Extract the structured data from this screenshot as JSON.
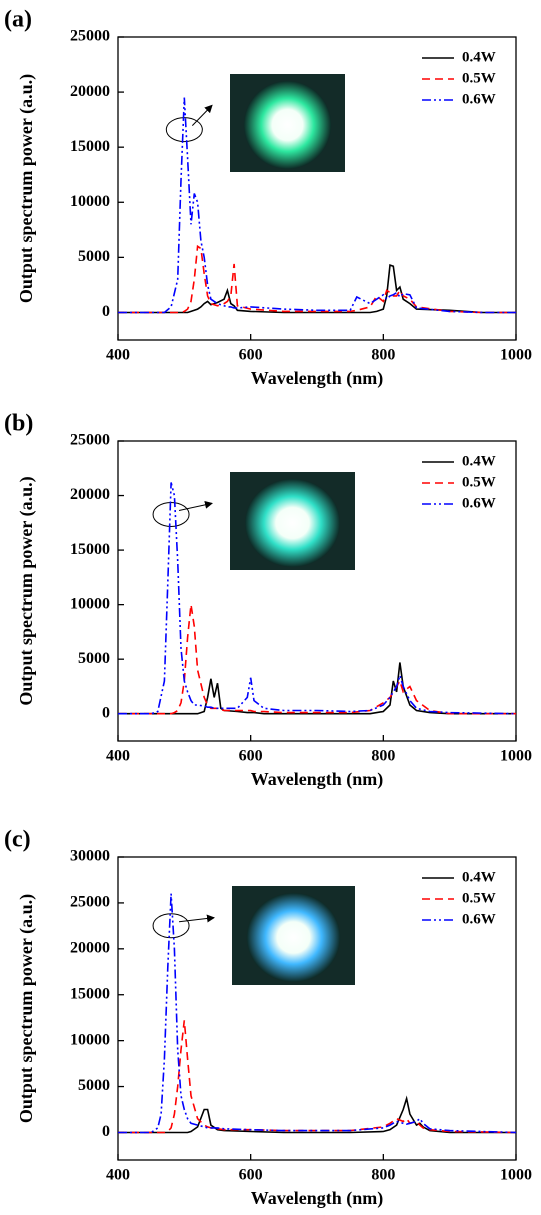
{
  "chart_data": [
    {
      "type": "line",
      "panel_label": "(a)",
      "x_label": "Wavelength (nm)",
      "y_label": "Output spectrum power (a.u.)",
      "xlim": [
        400,
        1000
      ],
      "xticks": [
        400,
        600,
        800,
        1000
      ],
      "ylim": [
        -2500,
        25000
      ],
      "yticks": [
        0,
        5000,
        10000,
        15000,
        20000,
        25000
      ],
      "legend": "upper right",
      "inset_color": "#2ee8a0",
      "x": [
        400,
        450,
        470,
        480,
        490,
        495,
        500,
        505,
        510,
        515,
        520,
        525,
        530,
        535,
        540,
        550,
        560,
        565,
        570,
        575,
        580,
        600,
        650,
        700,
        750,
        760,
        780,
        790,
        800,
        805,
        810,
        815,
        820,
        825,
        830,
        840,
        850,
        900,
        950,
        1000
      ],
      "series": [
        {
          "name": "0.4W",
          "color": "#000000",
          "linestyle": "solid",
          "values": [
            0,
            0,
            0,
            0,
            0,
            0,
            0,
            0,
            100,
            200,
            300,
            500,
            800,
            1000,
            700,
            900,
            1200,
            2000,
            800,
            600,
            200,
            100,
            0,
            0,
            0,
            0,
            0,
            100,
            300,
            1500,
            4300,
            4200,
            2000,
            2300,
            1200,
            800,
            300,
            200,
            0,
            0
          ]
        },
        {
          "name": "0.5W",
          "color": "#ff0000",
          "linestyle": "dashed",
          "values": [
            0,
            0,
            0,
            0,
            0,
            0,
            100,
            300,
            1000,
            3000,
            6000,
            5800,
            3500,
            1500,
            800,
            600,
            800,
            1000,
            1500,
            4400,
            600,
            300,
            100,
            100,
            100,
            200,
            500,
            1500,
            1000,
            2000,
            1800,
            1500,
            1500,
            2000,
            1500,
            1200,
            500,
            100,
            0,
            0
          ]
        },
        {
          "name": "0.6W",
          "color": "#0000ff",
          "linestyle": "dashdotdot",
          "values": [
            0,
            0,
            0,
            500,
            3000,
            12000,
            19500,
            14000,
            8000,
            10800,
            10000,
            6500,
            5000,
            2500,
            1200,
            800,
            600,
            500,
            500,
            400,
            400,
            500,
            300,
            200,
            200,
            1400,
            800,
            1200,
            1600,
            1200,
            1500,
            1600,
            1800,
            1400,
            1700,
            1600,
            400,
            100,
            0,
            0
          ]
        }
      ]
    },
    {
      "type": "line",
      "panel_label": "(b)",
      "x_label": "Wavelength (nm)",
      "y_label": "Output spectrum power (a.u.)",
      "xlim": [
        400,
        1000
      ],
      "xticks": [
        400,
        600,
        800,
        1000
      ],
      "ylim": [
        -2500,
        25000
      ],
      "yticks": [
        0,
        5000,
        10000,
        15000,
        20000,
        25000
      ],
      "legend": "upper right",
      "inset_color": "#30e0c8",
      "x": [
        400,
        450,
        460,
        470,
        475,
        480,
        485,
        490,
        495,
        500,
        505,
        510,
        515,
        520,
        530,
        535,
        540,
        545,
        550,
        555,
        560,
        580,
        595,
        600,
        605,
        620,
        650,
        700,
        750,
        780,
        800,
        810,
        815,
        820,
        825,
        830,
        840,
        850,
        870,
        900,
        1000
      ],
      "series": [
        {
          "name": "0.4W",
          "color": "#000000",
          "linestyle": "solid",
          "values": [
            0,
            0,
            0,
            0,
            0,
            0,
            0,
            0,
            0,
            0,
            0,
            0,
            0,
            0,
            200,
            1500,
            3200,
            1500,
            2800,
            500,
            300,
            200,
            100,
            100,
            100,
            0,
            0,
            0,
            0,
            0,
            200,
            800,
            3000,
            2000,
            4700,
            2500,
            800,
            300,
            100,
            0,
            0
          ]
        },
        {
          "name": "0.5W",
          "color": "#ff0000",
          "linestyle": "dashed",
          "values": [
            0,
            0,
            0,
            0,
            0,
            0,
            100,
            300,
            1000,
            3000,
            7000,
            10000,
            8000,
            4000,
            1500,
            800,
            500,
            500,
            500,
            400,
            300,
            300,
            300,
            300,
            200,
            200,
            100,
            100,
            100,
            300,
            1000,
            1500,
            2000,
            2500,
            3000,
            2000,
            2500,
            1200,
            300,
            0,
            0
          ]
        },
        {
          "name": "0.6W",
          "color": "#0000ff",
          "linestyle": "dashdotdot",
          "values": [
            0,
            0,
            200,
            3000,
            12000,
            21200,
            20000,
            14000,
            6000,
            3000,
            2000,
            1200,
            800,
            800,
            700,
            600,
            600,
            500,
            500,
            500,
            500,
            500,
            1500,
            3300,
            1200,
            500,
            300,
            300,
            200,
            300,
            800,
            1500,
            2000,
            2500,
            3500,
            2500,
            1200,
            500,
            200,
            100,
            0
          ]
        }
      ]
    },
    {
      "type": "line",
      "panel_label": "(c)",
      "x_label": "Wavelength (nm)",
      "y_label": "Output spectrum power (a.u.)",
      "xlim": [
        400,
        1000
      ],
      "xticks": [
        400,
        600,
        800,
        1000
      ],
      "ylim": [
        -3000,
        30000
      ],
      "yticks": [
        0,
        5000,
        10000,
        15000,
        20000,
        25000,
        30000
      ],
      "legend": "upper right",
      "inset_color": "#40b8ff",
      "x": [
        400,
        450,
        460,
        465,
        470,
        475,
        480,
        485,
        490,
        495,
        500,
        505,
        510,
        520,
        530,
        535,
        540,
        550,
        560,
        600,
        650,
        700,
        750,
        800,
        810,
        820,
        830,
        835,
        840,
        850,
        855,
        860,
        870,
        900,
        1000
      ],
      "series": [
        {
          "name": "0.4W",
          "color": "#000000",
          "linestyle": "solid",
          "values": [
            0,
            0,
            0,
            0,
            0,
            0,
            0,
            0,
            0,
            0,
            0,
            0,
            100,
            600,
            2500,
            2500,
            800,
            300,
            200,
            100,
            0,
            0,
            0,
            100,
            300,
            800,
            2500,
            3700,
            2000,
            800,
            1000,
            600,
            200,
            0,
            0
          ]
        },
        {
          "name": "0.5W",
          "color": "#ff0000",
          "linestyle": "dashed",
          "values": [
            0,
            0,
            0,
            0,
            0,
            100,
            500,
            2000,
            5000,
            9000,
            12200,
            8000,
            4000,
            1500,
            800,
            600,
            500,
            400,
            300,
            300,
            200,
            200,
            200,
            600,
            1000,
            1500,
            1200,
            1500,
            1000,
            1200,
            800,
            500,
            300,
            100,
            0
          ]
        },
        {
          "name": "0.6W",
          "color": "#0000ff",
          "linestyle": "dashdotdot",
          "values": [
            0,
            0,
            500,
            2000,
            8000,
            18000,
            26000,
            20000,
            9000,
            4000,
            2500,
            1500,
            1000,
            800,
            600,
            500,
            500,
            500,
            400,
            300,
            200,
            200,
            200,
            500,
            800,
            1200,
            1000,
            900,
            1000,
            1200,
            1500,
            1000,
            400,
            200,
            0
          ]
        }
      ]
    }
  ]
}
